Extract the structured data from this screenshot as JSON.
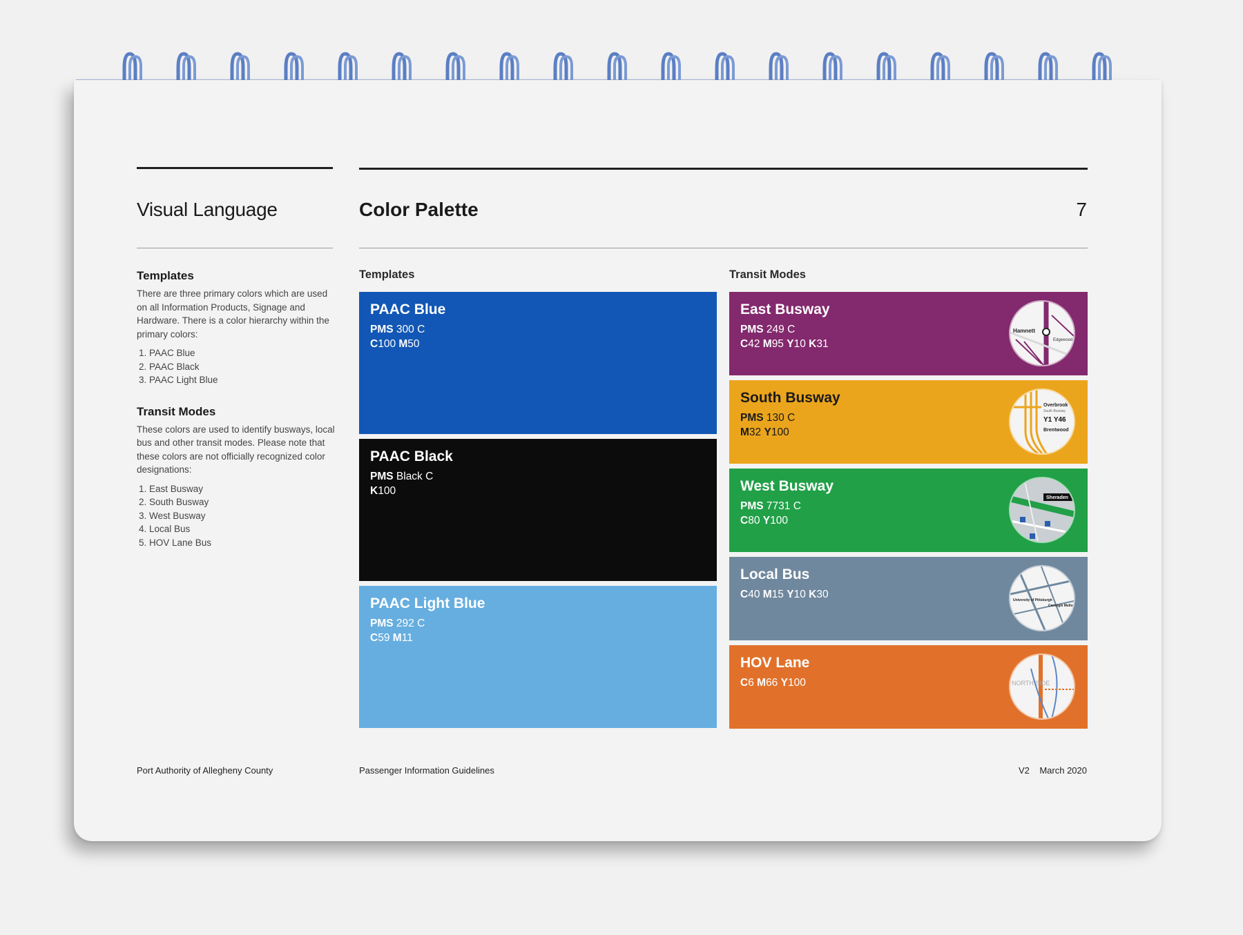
{
  "header": {
    "section_title": "Visual Language",
    "page_title": "Color Palette",
    "page_number": "7"
  },
  "sidebar": {
    "templates": {
      "heading": "Templates",
      "body": "There are three primary colors which are used on all Information Products, Signage and Hardware. There is a color hierarchy within the primary colors:",
      "items": [
        "PAAC Blue",
        "PAAC Black",
        "PAAC Light Blue"
      ]
    },
    "transit_modes": {
      "heading": "Transit Modes",
      "body": "These colors are used to identify busways, local bus and other transit modes. Please note that these colors are not officially recognized color designations:",
      "items": [
        "East Busway",
        "South Busway",
        "West Busway",
        "Local Bus",
        "HOV Lane Bus"
      ]
    }
  },
  "columns": {
    "templates_label": "Templates",
    "transit_label": "Transit Modes"
  },
  "template_swatches": [
    {
      "name": "PAAC Blue",
      "pms_label": "PMS",
      "pms": "300 C",
      "cmyk": [
        [
          "C",
          "100"
        ],
        [
          "M",
          "50"
        ]
      ],
      "color": "#1257b5"
    },
    {
      "name": "PAAC Black",
      "pms_label": "PMS",
      "pms": "Black C",
      "cmyk": [
        [
          "K",
          "100"
        ]
      ],
      "color": "#0c0c0c"
    },
    {
      "name": "PAAC Light Blue",
      "pms_label": "PMS",
      "pms": "292 C",
      "cmyk": [
        [
          "C",
          "59"
        ],
        [
          "M",
          "11"
        ]
      ],
      "color": "#66aee0"
    }
  ],
  "transit_swatches": [
    {
      "name": "East Busway",
      "pms_label": "PMS",
      "pms": "249 C",
      "cmyk": [
        [
          "C",
          "42"
        ],
        [
          "M",
          "95"
        ],
        [
          "Y",
          "10"
        ],
        [
          "K",
          "31"
        ]
      ],
      "color": "#83296d",
      "icon": "east-busway-map-icon",
      "map_labels": [
        "Hamnett",
        "Edgewood"
      ]
    },
    {
      "name": "South Busway",
      "pms_label": "PMS",
      "pms": "130 C",
      "cmyk": [
        [
          "M",
          "32"
        ],
        [
          "Y",
          "100"
        ]
      ],
      "color": "#eba51d",
      "icon": "south-busway-map-icon",
      "text_dark": true,
      "map_labels": [
        "Overbrook",
        "South Busway",
        "Y1  Y46",
        "Brentwood"
      ]
    },
    {
      "name": "West Busway",
      "pms_label": "PMS",
      "pms": "7731 C",
      "cmyk": [
        [
          "C",
          "80"
        ],
        [
          "Y",
          "100"
        ]
      ],
      "color": "#21a048",
      "icon": "west-busway-map-icon",
      "map_labels": [
        "Sheraden"
      ]
    },
    {
      "name": "Local Bus",
      "pms_label": "",
      "pms": "",
      "cmyk": [
        [
          "C",
          "40"
        ],
        [
          "M",
          "15"
        ],
        [
          "Y",
          "10"
        ],
        [
          "K",
          "30"
        ]
      ],
      "color": "#70889e",
      "icon": "local-bus-map-icon",
      "map_labels": [
        "University of Pittsburgh",
        "Carnegie Mellon University"
      ]
    },
    {
      "name": "HOV Lane",
      "pms_label": "",
      "pms": "",
      "cmyk": [
        [
          "C",
          "6"
        ],
        [
          "M",
          "66"
        ],
        [
          "Y",
          "100"
        ]
      ],
      "color": "#e1712a",
      "icon": "hov-lane-map-icon",
      "map_labels": [
        "NORTH SIDE"
      ]
    }
  ],
  "footer": {
    "organization": "Port Authority of Allegheny County",
    "document": "Passenger Information Guidelines",
    "version": "V2",
    "date": "March 2020"
  },
  "colors": {
    "binding_wire": "#5b7fc4",
    "page": "#f3f3f3",
    "background": "#f1f1f1"
  }
}
